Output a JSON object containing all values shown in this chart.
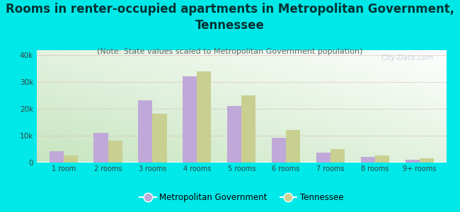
{
  "categories": [
    "1 room",
    "2 rooms",
    "3 rooms",
    "4 rooms",
    "5 rooms",
    "6 rooms",
    "7 rooms",
    "8 rooms",
    "9+ rooms"
  ],
  "metro_values": [
    4000,
    11000,
    23000,
    32000,
    21000,
    9000,
    3500,
    2000,
    1000
  ],
  "tn_values": [
    2500,
    8000,
    18000,
    34000,
    25000,
    12000,
    5000,
    2500,
    1500
  ],
  "metro_color": "#c0a8d8",
  "tn_color": "#c8cf90",
  "title": "Rooms in renter-occupied apartments in Metropolitan Government,\nTennessee",
  "subtitle": "(Note: State values scaled to Metropolitan Government population)",
  "legend_metro": "Metropolitan Government",
  "legend_tn": "Tennessee",
  "ylim": [
    0,
    42000
  ],
  "yticks": [
    0,
    10000,
    20000,
    30000,
    40000
  ],
  "background_color_top": "#f0f8ee",
  "background_color_bottom": "#d8eeda",
  "outer_bg": "#00e8e8",
  "watermark": "City-Data.com",
  "title_fontsize": 12,
  "subtitle_fontsize": 8,
  "title_color": "#003333",
  "subtitle_color": "#556666"
}
